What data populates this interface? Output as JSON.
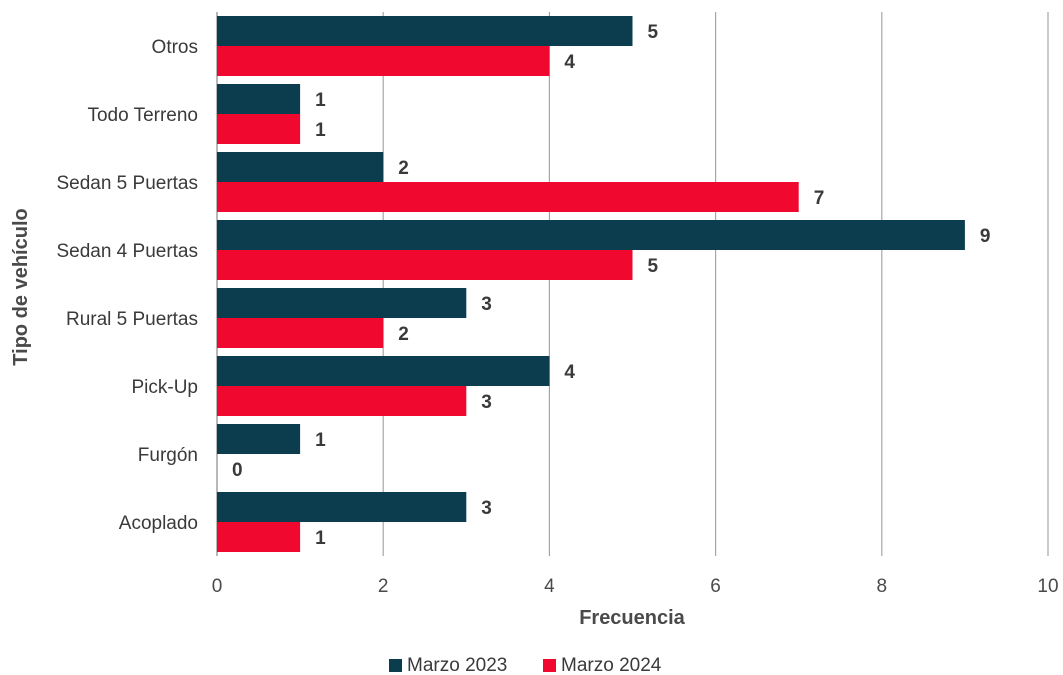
{
  "chart_data": {
    "type": "bar",
    "orientation": "horizontal",
    "categories": [
      "Otros",
      "Todo Terreno",
      "Sedan 5 Puertas",
      "Sedan 4 Puertas",
      "Rural 5 Puertas",
      "Pick-Up",
      "Furgón",
      "Acoplado"
    ],
    "series": [
      {
        "name": "Marzo 2023",
        "color": "#0b3d4f",
        "values": [
          5,
          1,
          2,
          9,
          3,
          4,
          1,
          3
        ]
      },
      {
        "name": "Marzo 2024",
        "color": "#f0082f",
        "values": [
          4,
          1,
          7,
          5,
          2,
          3,
          0,
          1
        ]
      }
    ],
    "xlabel": "Frecuencia",
    "ylabel": "Tipo de vehículo",
    "xlim": [
      0,
      10
    ],
    "xticks": [
      "0",
      "2",
      "4",
      "6",
      "8",
      "10"
    ],
    "grid": "vertical",
    "legend_position": "bottom"
  }
}
